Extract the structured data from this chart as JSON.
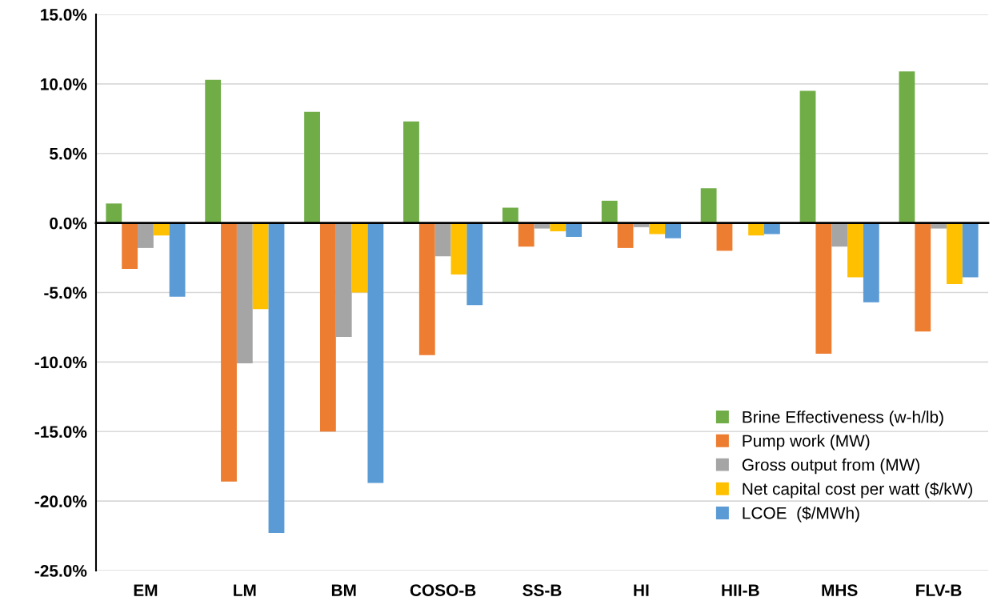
{
  "chart_data": {
    "type": "bar",
    "categories": [
      "EM",
      "LM",
      "BM",
      "COSO-B",
      "SS-B",
      "HI",
      "HII-B",
      "MHS",
      "FLV-B"
    ],
    "series": [
      {
        "name": "Brine Effectiveness (w-h/lb)",
        "color": "#70ad47",
        "values": [
          1.4,
          10.3,
          8.0,
          7.3,
          1.1,
          1.6,
          2.5,
          9.5,
          10.9
        ]
      },
      {
        "name": "Pump work (MW)",
        "color": "#ed7d31",
        "values": [
          -3.3,
          -18.6,
          -15.0,
          -9.5,
          -1.7,
          -1.8,
          -2.0,
          -9.4,
          -7.8
        ]
      },
      {
        "name": "Gross output from (MW)",
        "color": "#a5a5a5",
        "values": [
          -1.8,
          -10.1,
          -8.2,
          -2.4,
          -0.4,
          -0.3,
          null,
          -1.7,
          -0.4
        ]
      },
      {
        "name": "Net capital cost per watt ($/kW)",
        "color": "#ffc000",
        "values": [
          -0.9,
          -6.2,
          -5.0,
          -3.7,
          -0.6,
          -0.8,
          -0.9,
          -3.9,
          -4.4
        ]
      },
      {
        "name": "LCOE  ($/MWh)",
        "color": "#5b9bd5",
        "values": [
          -5.3,
          -22.3,
          -18.7,
          -5.9,
          -1.0,
          -1.1,
          -0.8,
          -5.7,
          -3.9
        ]
      }
    ],
    "ylim": [
      -25,
      15
    ],
    "yticks": [
      {
        "value": -25,
        "label": "-25.0%"
      },
      {
        "value": -20,
        "label": "-20.0%"
      },
      {
        "value": -15,
        "label": "-15.0%"
      },
      {
        "value": -10,
        "label": "-10.0%"
      },
      {
        "value": -5,
        "label": "-5.0%"
      },
      {
        "value": 0,
        "label": "0.0%"
      },
      {
        "value": 5,
        "label": "5.0%"
      },
      {
        "value": 10,
        "label": "10.0%"
      },
      {
        "value": 15,
        "label": "15.0%"
      }
    ],
    "grid": "y",
    "legend": "bottom right"
  }
}
